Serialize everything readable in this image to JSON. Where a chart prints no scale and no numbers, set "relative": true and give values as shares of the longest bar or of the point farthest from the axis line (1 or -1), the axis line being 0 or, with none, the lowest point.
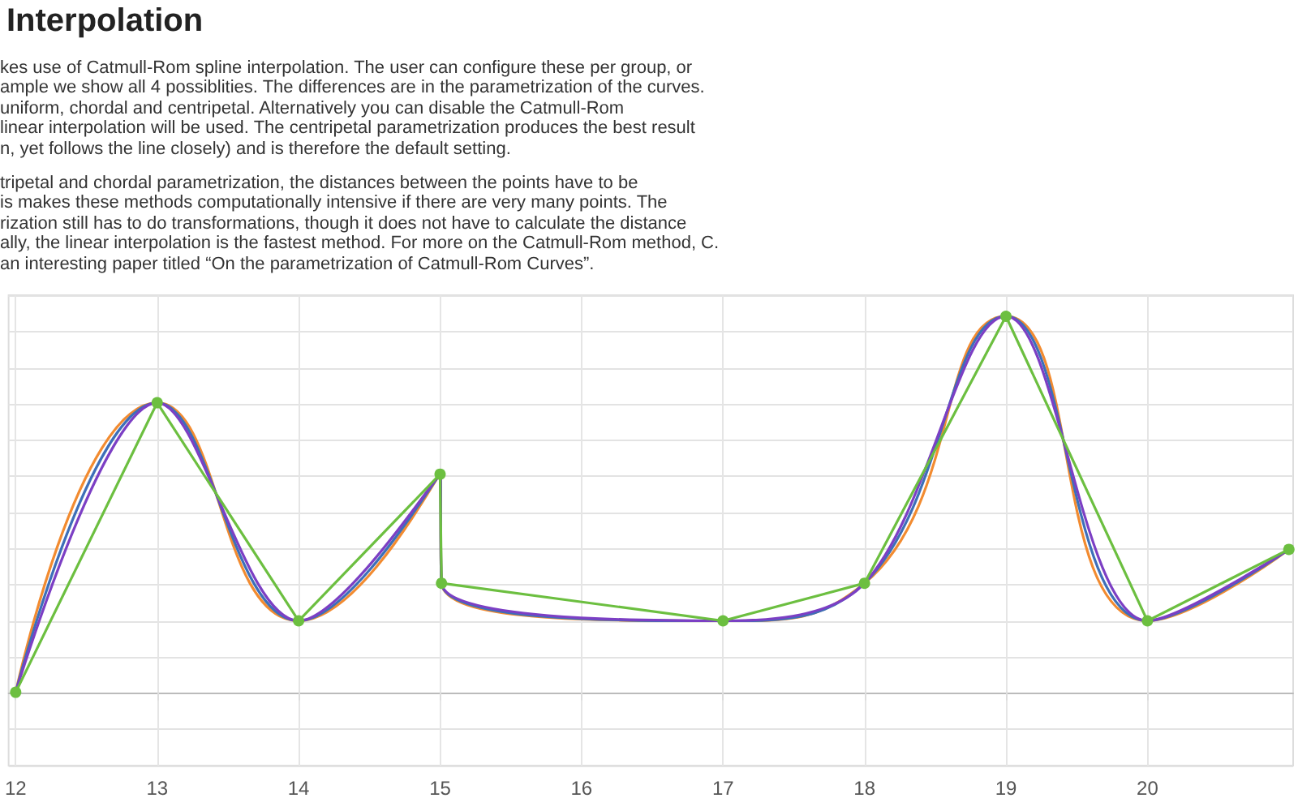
{
  "chart_data": {
    "type": "line",
    "title": "Interpolation",
    "annotations": [
      "kes use of Catmull-Rom spline interpolation. The user can configure these per group, or",
      "ample we show all 4 possiblities. The differences are in the parametrization of the curves.",
      "uniform, chordal and centripetal. Alternatively you can disable the Catmull-Rom",
      "linear interpolation will be used. The centripetal parametrization produces the best result",
      "n, yet follows the line closely) and is therefore the default setting.",
      "tripetal and chordal parametrization, the distances between the points have to be",
      "is makes these methods computationally intensive if there are very many points. The",
      "rization still has to do transformations, though it does not have to calculate the distance",
      "ally, the linear interpolation is the fastest method. For more on the Catmull-Rom method, C.",
      "an interesting paper titled “On the parametrization of Catmull-Rom Curves”."
    ],
    "x": [
      12,
      13,
      14,
      15,
      15.01,
      17,
      18,
      19,
      20,
      21
    ],
    "xlim": [
      11.95,
      21.03
    ],
    "xticks": [
      12,
      13,
      14,
      15,
      16,
      17,
      18,
      19,
      20
    ],
    "relative": true,
    "grid": true,
    "series": [
      {
        "color": "#f28b30",
        "marker": "none",
        "values": [
          0,
          0.77,
          0.19,
          0.58,
          0.29,
          0.19,
          0.29,
          1,
          0.19,
          0.38
        ]
      },
      {
        "color": "#3d6fb8",
        "marker": "none",
        "values": [
          0,
          0.77,
          0.19,
          0.58,
          0.29,
          0.19,
          0.29,
          1,
          0.19,
          0.38
        ]
      },
      {
        "color": "#7c3fc4",
        "marker": "none",
        "values": [
          0,
          0.77,
          0.19,
          0.58,
          0.29,
          0.19,
          0.29,
          1,
          0.19,
          0.38
        ]
      },
      {
        "color": "#6cbf40",
        "marker": "circle",
        "values": [
          0,
          0.77,
          0.19,
          0.58,
          0.29,
          0.19,
          0.29,
          1,
          0.19,
          0.38
        ]
      }
    ]
  }
}
